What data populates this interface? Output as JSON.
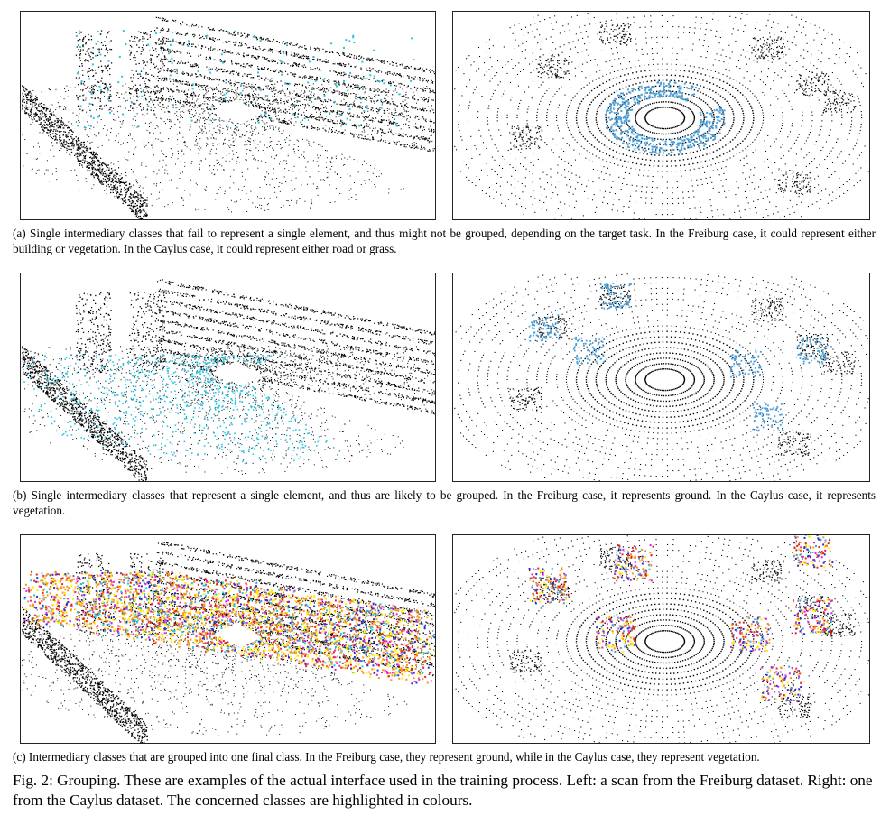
{
  "rows": [
    {
      "caption": "(a) Single intermediary classes that fail to represent a single element, and thus might not be grouped, depending on the target task. In the Freiburg case, it could represent either building or vegetation. In the Caylus case, it could represent either road or grass.",
      "left_alt": "Freiburg scan with cyan highlighted points",
      "right_alt": "Caylus scan with cyan highlighted points"
    },
    {
      "caption": "(b) Single intermediary classes that represent a single element, and thus are likely to be grouped. In the Freiburg case, it represents ground. In the Caylus case, it represents vegetation.",
      "left_alt": "Freiburg scan with cyan ground points",
      "right_alt": "Caylus scan with cyan vegetation points"
    },
    {
      "caption": "(c) Intermediary classes that are grouped into one final class. In the Freiburg case, they represent ground, while in the Caylus case, they represent vegetation.",
      "left_alt": "Freiburg scan with multi-coloured ground classes",
      "right_alt": "Caylus scan with multi-coloured vegetation classes"
    }
  ],
  "figure_caption": "Fig. 2: Grouping. These are examples of the actual interface used in the training process. Left: a scan from the Freiburg dataset. Right: one from the Caylus dataset. The concerned classes are highlighted in colours.",
  "colors": {
    "points": "#000000",
    "highlight": "#29c4df",
    "orange": "#f7941d",
    "yellow": "#ffee00",
    "blue": "#2b2bd9",
    "magenta": "#e01fd6",
    "red": "#e8201a",
    "steelblue": "#4a9fd8"
  }
}
